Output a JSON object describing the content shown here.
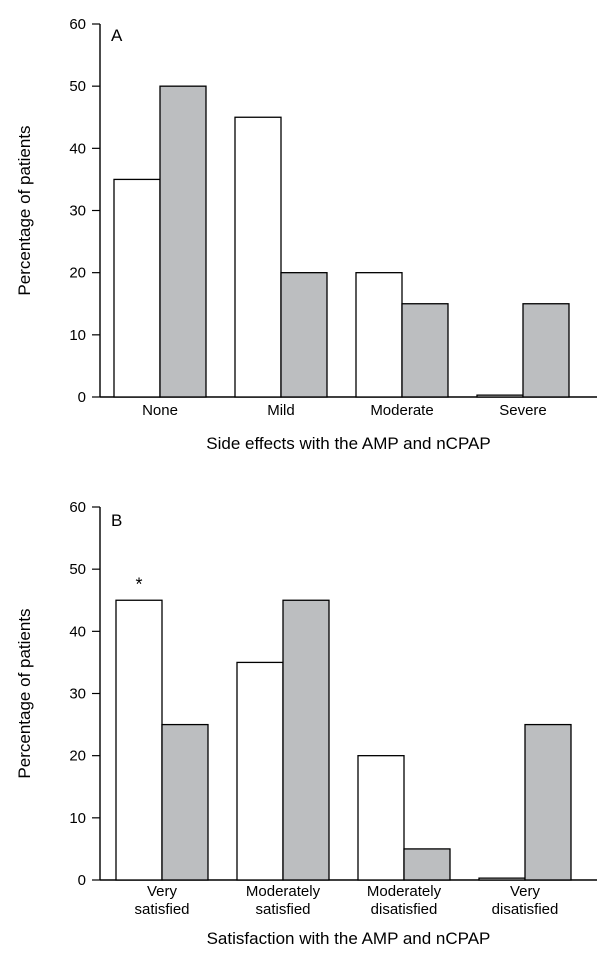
{
  "chart_data": [
    {
      "type": "bar",
      "panel_label": "A",
      "categories": [
        [
          "None"
        ],
        [
          "Mild"
        ],
        [
          "Moderate"
        ],
        [
          "Severe"
        ]
      ],
      "series": [
        {
          "values": [
            35,
            45,
            20,
            0.3
          ],
          "color": "#ffffff"
        },
        {
          "values": [
            50,
            20,
            15,
            15
          ],
          "color": "#bcbec0"
        }
      ],
      "xlabel": "Side effects with the AMP and nCPAP",
      "ylabel": "Percentage of patients",
      "ylim": [
        0,
        60
      ],
      "yticks": [
        0,
        10,
        20,
        30,
        40,
        50,
        60
      ],
      "annotations": [],
      "grid": false
    },
    {
      "type": "bar",
      "panel_label": "B",
      "categories": [
        [
          "Very",
          "satisfied"
        ],
        [
          "Moderately",
          "satisfied"
        ],
        [
          "Moderately",
          "disatisfied"
        ],
        [
          "Very",
          "disatisfied"
        ]
      ],
      "series": [
        {
          "values": [
            45,
            35,
            20,
            0.3
          ],
          "color": "#ffffff"
        },
        {
          "values": [
            25,
            45,
            5,
            25
          ],
          "color": "#bcbec0"
        }
      ],
      "xlabel": "Satisfaction with the AMP and nCPAP",
      "ylabel": "Percentage of patients",
      "ylim": [
        0,
        60
      ],
      "yticks": [
        0,
        10,
        20,
        30,
        40,
        50,
        60
      ],
      "annotations": [
        {
          "category": 0,
          "series": 0,
          "text": "*"
        }
      ],
      "grid": false
    }
  ]
}
